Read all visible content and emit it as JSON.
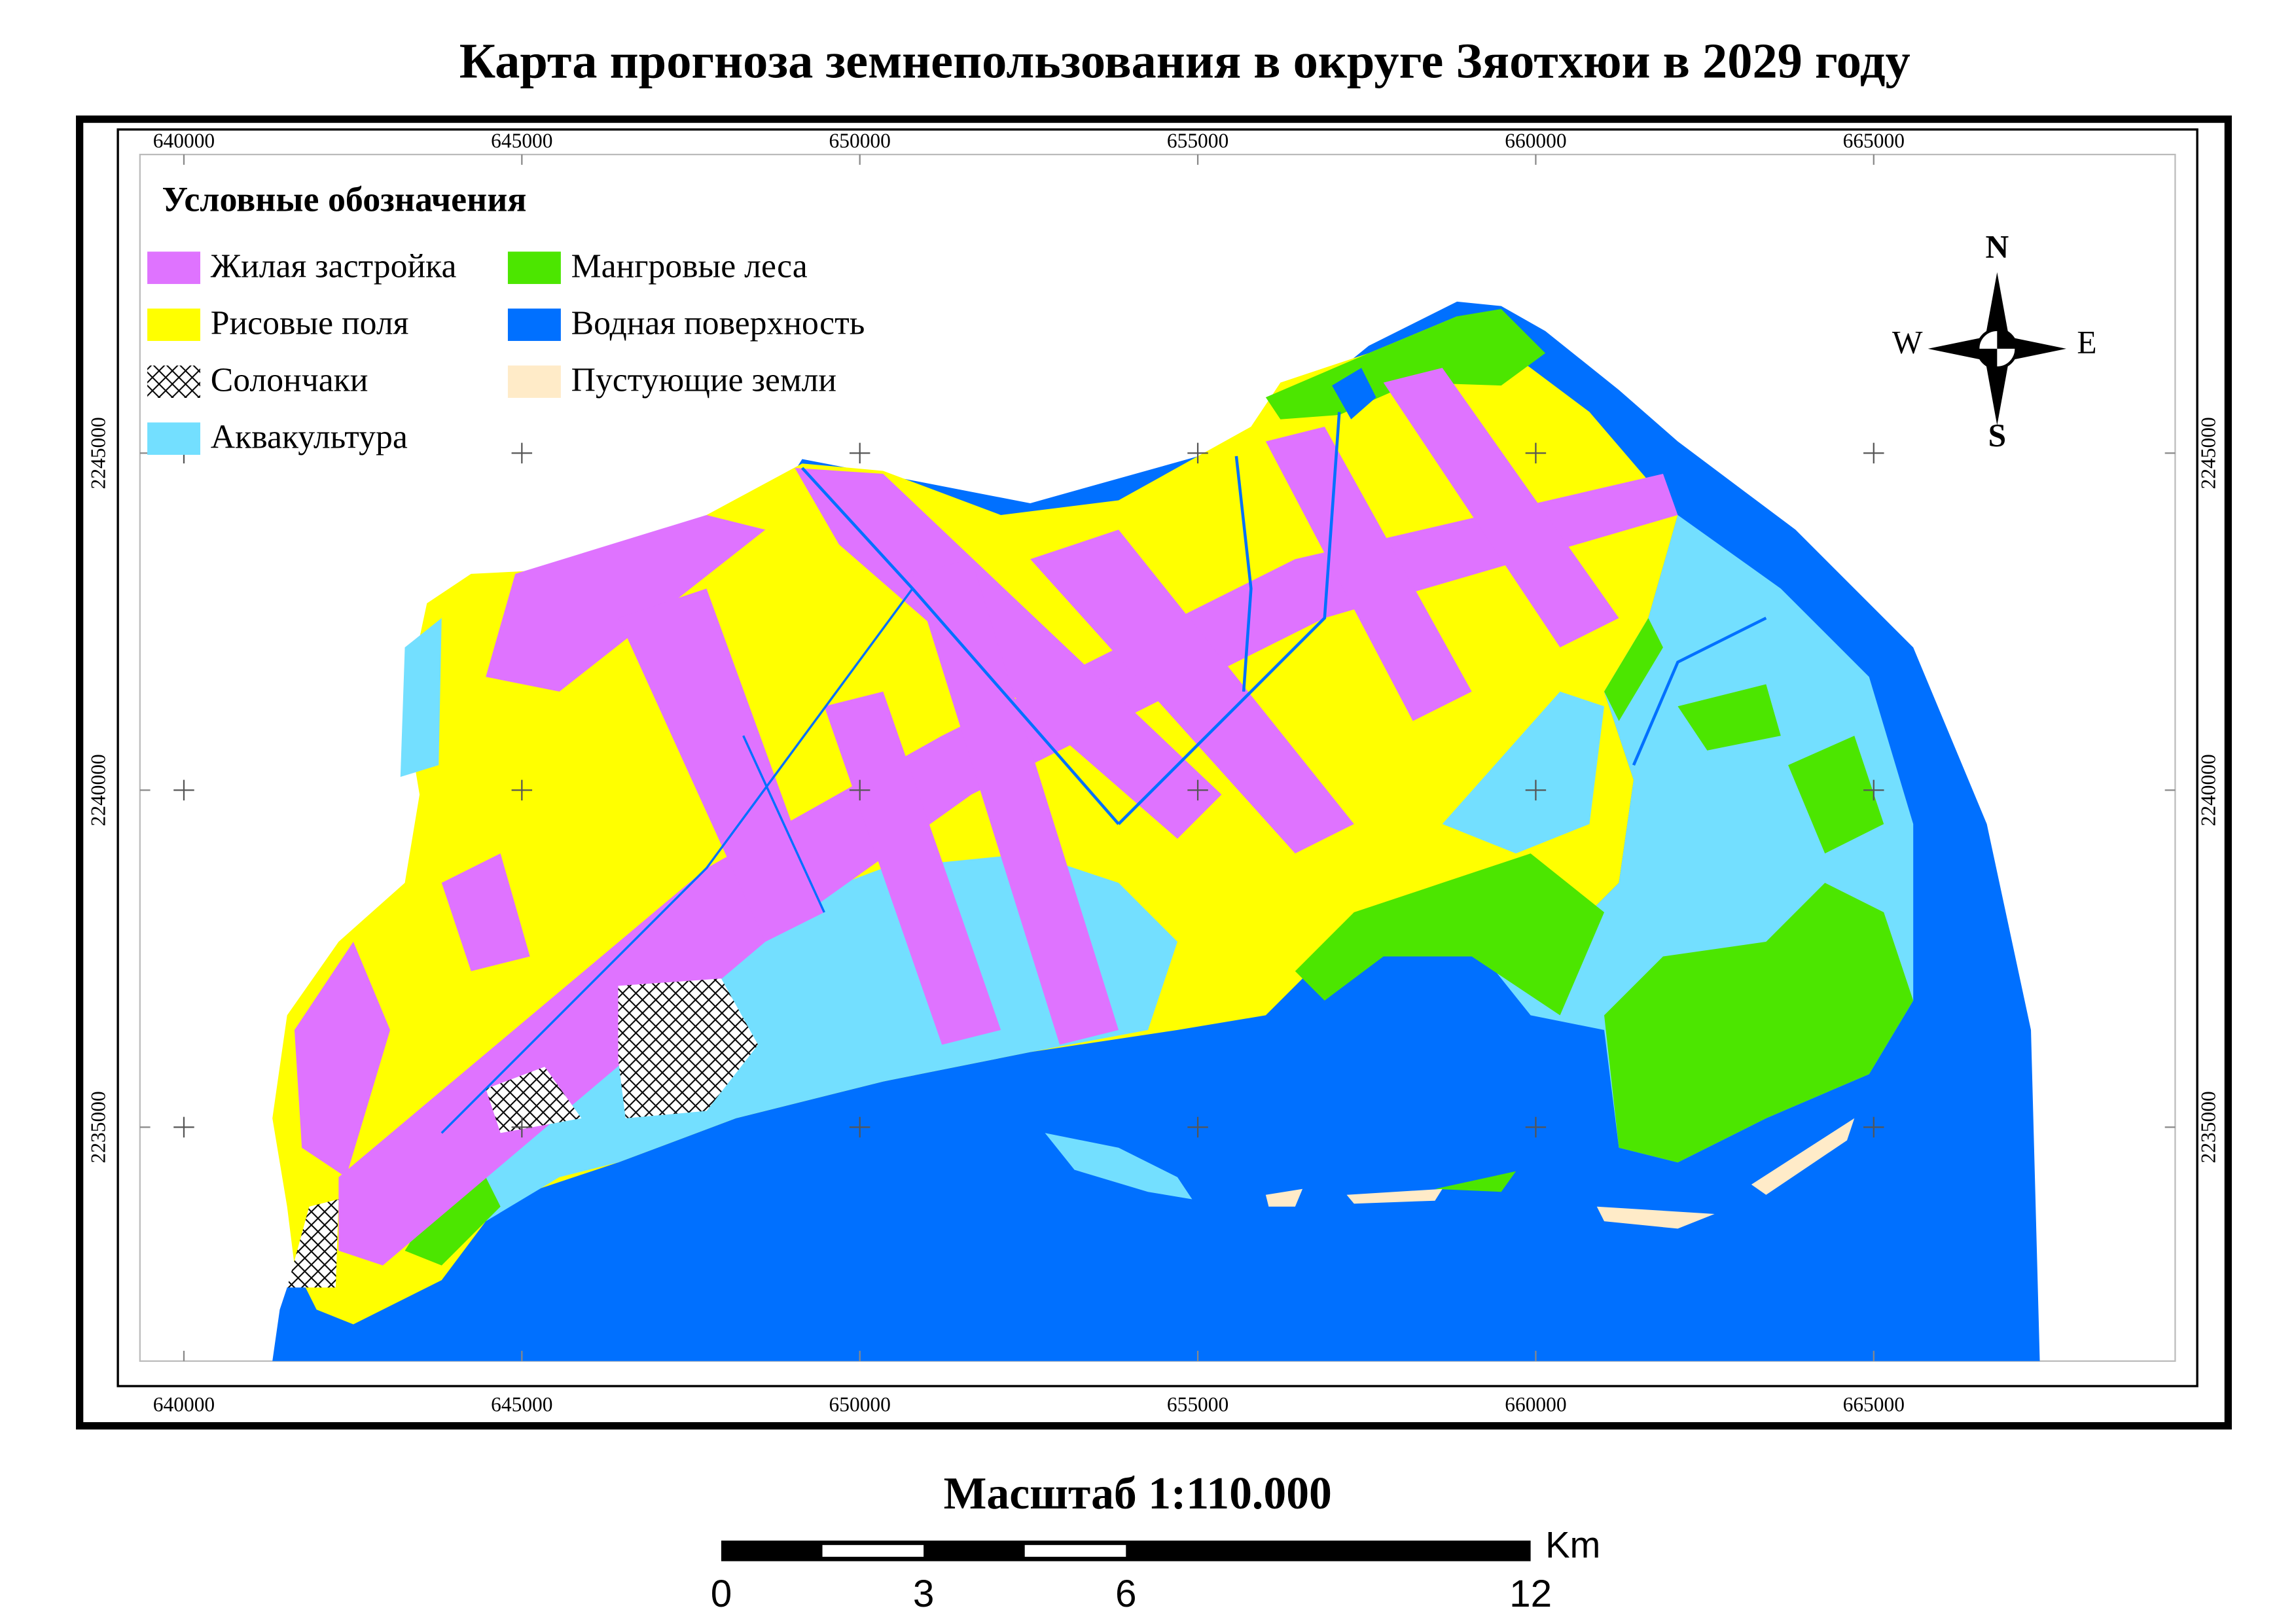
{
  "title": "Карта прогноза земнепользования в округе Зяотхюи в 2029 году",
  "legend": {
    "title": "Условные обозначения",
    "items": [
      {
        "label": "Жилая застройка",
        "color": "#df73ff"
      },
      {
        "label": "Рисовые поля",
        "color": "#ffff00"
      },
      {
        "label": "Солончаки",
        "pattern": "crosshatch"
      },
      {
        "label": "Аквакультура",
        "color": "#73dfff"
      },
      {
        "label": "Мангровые леса",
        "color": "#4ce600"
      },
      {
        "label": "Водная поверхность",
        "color": "#0070ff"
      },
      {
        "label": "Пустующие земли",
        "color": "#ffebc8"
      }
    ]
  },
  "map": {
    "xlim": [
      639350,
      669460
    ],
    "ylim": [
      2231530,
      2249430
    ],
    "x_ticks": [
      640000,
      645000,
      650000,
      655000,
      660000,
      665000
    ],
    "y_ticks": [
      2235000,
      2240000,
      2245000
    ]
  },
  "compass": {
    "north": "N",
    "south": "S",
    "west": "W",
    "east": "E"
  },
  "scale": {
    "text": "Масштаб  1:110.000",
    "unit": "Km",
    "ticks": [
      0,
      3,
      6,
      12
    ]
  }
}
